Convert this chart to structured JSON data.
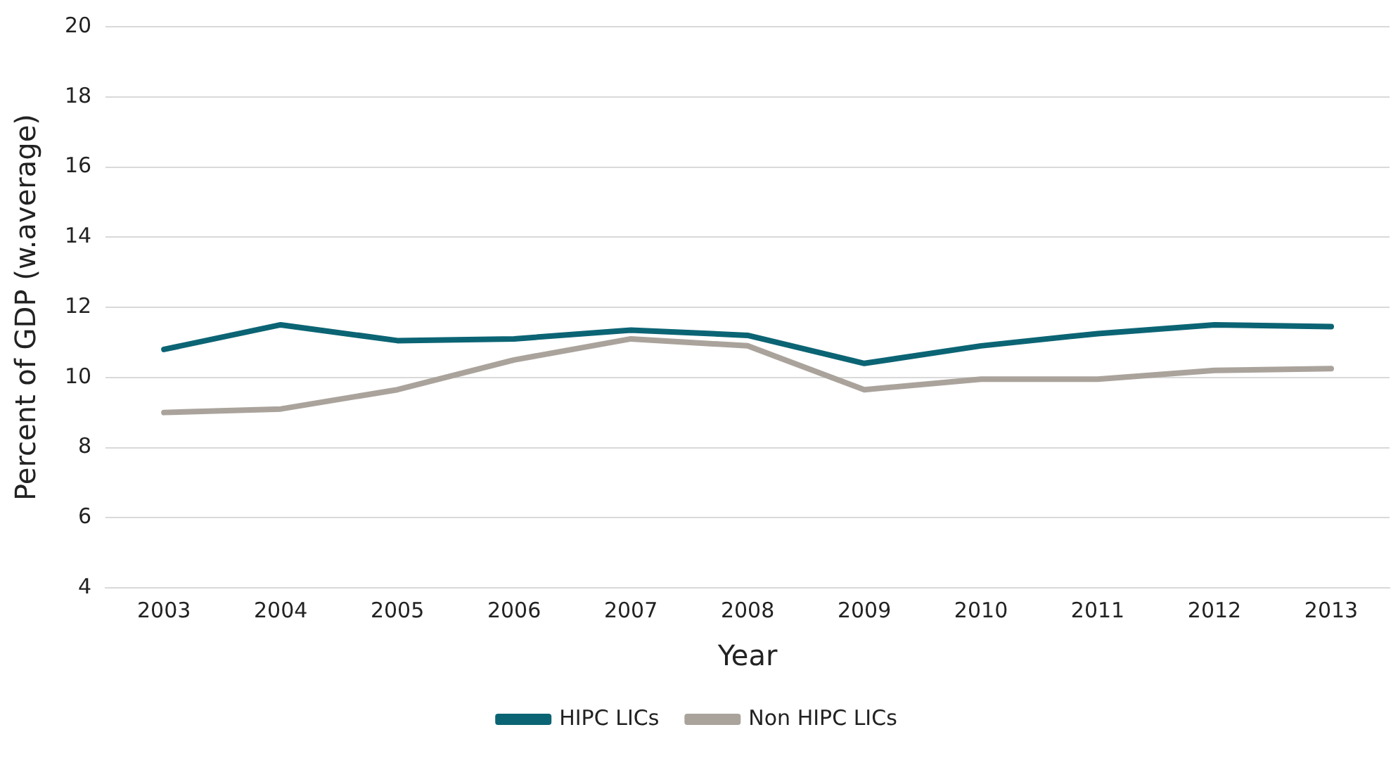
{
  "chart_data": {
    "type": "line",
    "xlabel": "Year",
    "ylabel": "Percent of GDP (w.average)",
    "categories": [
      "2003",
      "2004",
      "2005",
      "2006",
      "2007",
      "2008",
      "2009",
      "2010",
      "2011",
      "2012",
      "2013"
    ],
    "series": [
      {
        "name": "HIPC LICs",
        "color": "#0b6474",
        "values": [
          10.8,
          11.5,
          11.05,
          11.1,
          11.35,
          11.2,
          10.4,
          10.9,
          11.25,
          11.5,
          11.45
        ]
      },
      {
        "name": "Non HIPC LICs",
        "color": "#aaa39c",
        "values": [
          9.0,
          9.1,
          9.65,
          10.5,
          11.1,
          10.9,
          9.65,
          9.95,
          9.95,
          10.2,
          10.25
        ]
      }
    ],
    "ylim": [
      4,
      20
    ],
    "yticks": [
      4,
      6,
      8,
      10,
      12,
      14,
      16,
      18,
      20
    ],
    "grid": "y",
    "legend": "bottom",
    "marker": "none",
    "line_style": "solid"
  }
}
